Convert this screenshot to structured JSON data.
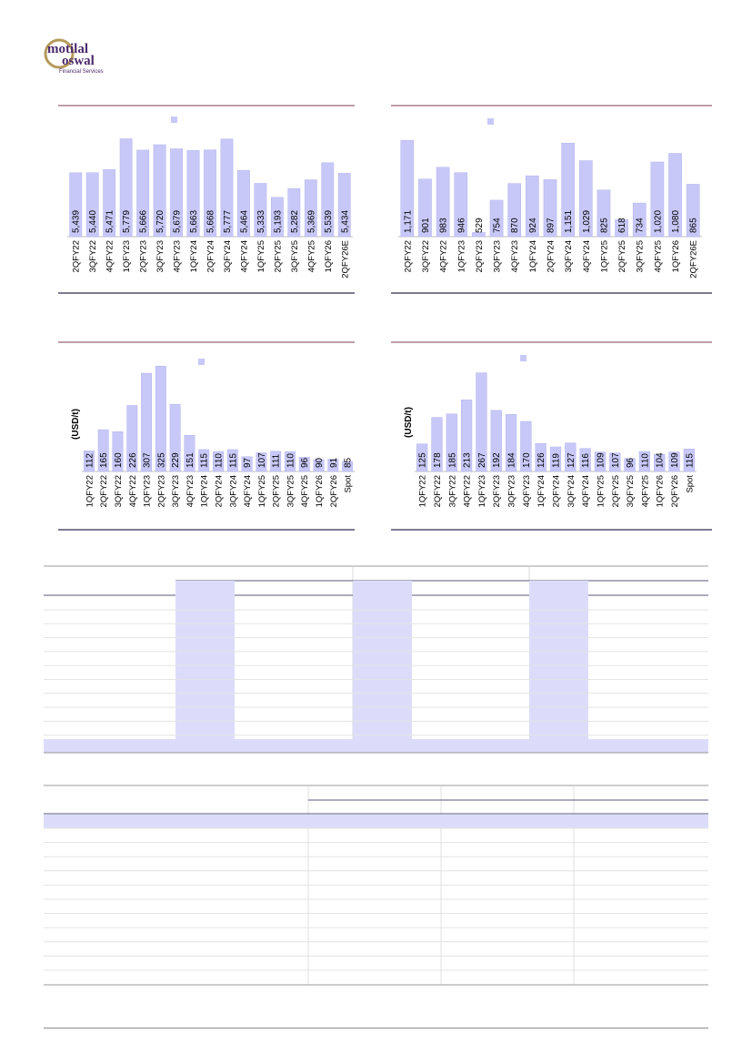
{
  "brand": {
    "name_line1": "motilal",
    "name_line2": "oswal",
    "tagline": "Financial Services",
    "text_color": "#4b2a6b",
    "ring_color": "#b59a5b"
  },
  "colors": {
    "bar": "#c8c8f8",
    "bar_stroke": "#b2b2ee",
    "panel_rule": "#2e2a4f",
    "panel_top_rule": "#7a3c56",
    "table_highlight": "#dcdcfa"
  },
  "chart_data": [
    {
      "type": "bar",
      "categories": [
        "2QFY22",
        "3QFY22",
        "4QFY22",
        "1QFY23",
        "2QFY23",
        "3QFY23",
        "4QFY23",
        "1QFY24",
        "2QFY24",
        "3QFY24",
        "4QFY24",
        "1QFY25",
        "2QFY25",
        "3QFY25",
        "4QFY25",
        "1QFY26",
        "2QFY26E"
      ],
      "values": [
        5439,
        5440,
        5471,
        5779,
        5666,
        5720,
        5679,
        5663,
        5668,
        5777,
        5464,
        5333,
        5193,
        5282,
        5369,
        5539,
        5434
      ],
      "value_labels": [
        "5,439",
        "5,440",
        "5,471",
        "5,779",
        "5,666",
        "5,720",
        "5,679",
        "5,663",
        "5,668",
        "5,777",
        "5,464",
        "5,333",
        "5,193",
        "5,282",
        "5,369",
        "5,539",
        "5,434"
      ],
      "ylim": [
        4800,
        5820
      ],
      "ylabel": "",
      "legend": "top-center"
    },
    {
      "type": "bar",
      "categories": [
        "2QFY22",
        "3QFY22",
        "4QFY22",
        "1QFY23",
        "2QFY23",
        "3QFY23",
        "4QFY23",
        "1QFY24",
        "2QFY24",
        "3QFY24",
        "4QFY24",
        "1QFY25",
        "2QFY25",
        "3QFY25",
        "4QFY25",
        "1QFY26",
        "2QFY26E"
      ],
      "values": [
        1171,
        901,
        983,
        946,
        529,
        754,
        870,
        924,
        897,
        1151,
        1029,
        825,
        618,
        734,
        1020,
        1080,
        865
      ],
      "value_labels": [
        "1,171",
        "901",
        "983",
        "946",
        "529",
        "754",
        "870",
        "924",
        "897",
        "1,151",
        "1,029",
        "825",
        "618",
        "734",
        "1,020",
        "1,080",
        "865"
      ],
      "ylim": [
        500,
        1210
      ],
      "ylabel": "",
      "legend": "top-center"
    },
    {
      "type": "bar",
      "categories": [
        "1QFY22",
        "2QFY22",
        "3QFY22",
        "4QFY22",
        "1QFY23",
        "2QFY23",
        "3QFY23",
        "4QFY23",
        "1QFY24",
        "2QFY24",
        "3QFY24",
        "4QFY24",
        "1QFY25",
        "2QFY25",
        "3QFY25",
        "4QFY25",
        "1QFY26",
        "2QFY26",
        "Spot"
      ],
      "values": [
        112,
        165,
        160,
        226,
        307,
        325,
        229,
        151,
        115,
        110,
        115,
        97,
        107,
        111,
        110,
        96,
        90,
        91,
        85
      ],
      "value_labels": [
        "112",
        "165",
        "160",
        "226",
        "307",
        "325",
        "229",
        "151",
        "115",
        "110",
        "115",
        "97",
        "107",
        "111",
        "110",
        "96",
        "90",
        "91",
        "85"
      ],
      "ylim": [
        60,
        330
      ],
      "ylabel": "(USD/t)",
      "legend": "top-center"
    },
    {
      "type": "bar",
      "categories": [
        "1QFY22",
        "2QFY22",
        "3QFY22",
        "4QFY22",
        "1QFY23",
        "2QFY23",
        "3QFY23",
        "4QFY23",
        "1QFY24",
        "2QFY24",
        "3QFY24",
        "4QFY24",
        "1QFY25",
        "2QFY25",
        "3QFY25",
        "4QFY25",
        "1QFY26",
        "2QFY26",
        "Spot"
      ],
      "values": [
        125,
        178,
        185,
        213,
        267,
        192,
        184,
        170,
        126,
        119,
        127,
        116,
        109,
        107,
        96,
        110,
        104,
        109,
        115
      ],
      "value_labels": [
        "125",
        "178",
        "185",
        "213",
        "267",
        "192",
        "184",
        "170",
        "126",
        "119",
        "127",
        "116",
        "109",
        "107",
        "96",
        "110",
        "104",
        "109",
        "115"
      ],
      "ylim": [
        70,
        270
      ],
      "ylabel": "(USD/t)",
      "legend": "top-center"
    }
  ],
  "tables": {
    "table1_body_rows": 10,
    "table2_body_rows": 11
  }
}
